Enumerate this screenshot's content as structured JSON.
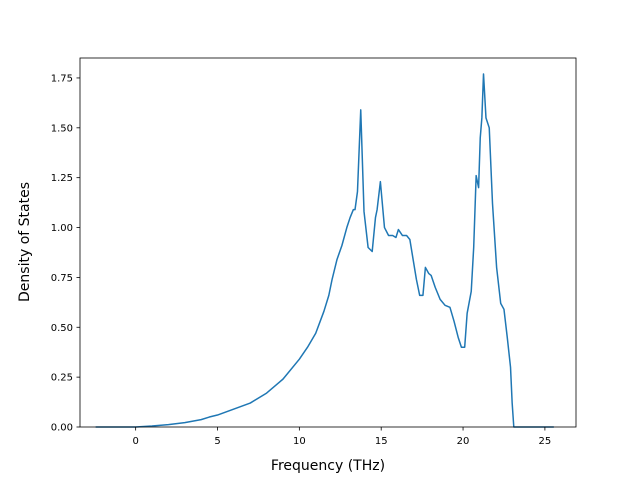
{
  "chart_data": {
    "type": "line",
    "title": "",
    "xlabel": "Frequency (THz)",
    "ylabel": "Density of States",
    "xlim": [
      -3.4,
      26.9
    ],
    "ylim": [
      0.0,
      1.85
    ],
    "xticks": [
      0,
      5,
      10,
      15,
      20,
      25
    ],
    "xtick_labels": [
      "0",
      "5",
      "10",
      "15",
      "20",
      "25"
    ],
    "yticks": [
      0.0,
      0.25,
      0.5,
      0.75,
      1.0,
      1.25,
      1.5,
      1.75
    ],
    "ytick_labels": [
      "0.00",
      "0.25",
      "0.50",
      "0.75",
      "1.00",
      "1.25",
      "1.50",
      "1.75"
    ],
    "grid": false,
    "legend": "none",
    "series": [
      {
        "color": "#1f77b4",
        "x": [
          -2.4,
          0.0,
          1.0,
          2.0,
          3.0,
          4.0,
          4.5,
          5.0,
          6.0,
          7.0,
          8.0,
          9.0,
          10.0,
          10.5,
          11.0,
          11.5,
          11.8,
          12.0,
          12.3,
          12.6,
          12.9,
          13.1,
          13.3,
          13.4,
          13.55,
          13.75,
          13.95,
          14.2,
          14.45,
          14.65,
          14.75,
          14.95,
          15.2,
          15.45,
          15.7,
          15.9,
          16.05,
          16.3,
          16.55,
          16.75,
          16.95,
          17.15,
          17.35,
          17.55,
          17.7,
          17.9,
          18.05,
          18.3,
          18.6,
          18.9,
          19.2,
          19.45,
          19.7,
          19.9,
          20.1,
          20.25,
          20.5,
          20.65,
          20.8,
          20.95,
          21.05,
          21.15,
          21.25,
          21.4,
          21.6,
          21.8,
          22.05,
          22.3,
          22.5,
          22.7,
          22.9,
          23.0,
          23.1,
          23.2,
          24.0,
          25.5
        ],
        "y": [
          0.0,
          0.0,
          0.005,
          0.012,
          0.022,
          0.037,
          0.05,
          0.06,
          0.09,
          0.12,
          0.17,
          0.24,
          0.34,
          0.4,
          0.47,
          0.58,
          0.66,
          0.74,
          0.84,
          0.91,
          1.0,
          1.05,
          1.09,
          1.09,
          1.18,
          1.59,
          1.08,
          0.9,
          0.88,
          1.05,
          1.09,
          1.23,
          1.0,
          0.96,
          0.96,
          0.95,
          0.99,
          0.96,
          0.96,
          0.94,
          0.84,
          0.74,
          0.66,
          0.66,
          0.8,
          0.77,
          0.76,
          0.7,
          0.64,
          0.61,
          0.6,
          0.53,
          0.45,
          0.4,
          0.4,
          0.57,
          0.68,
          0.9,
          1.26,
          1.2,
          1.45,
          1.55,
          1.77,
          1.55,
          1.5,
          1.12,
          0.8,
          0.62,
          0.59,
          0.45,
          0.3,
          0.12,
          0.0,
          0.0,
          0.0,
          0.0
        ]
      }
    ]
  }
}
